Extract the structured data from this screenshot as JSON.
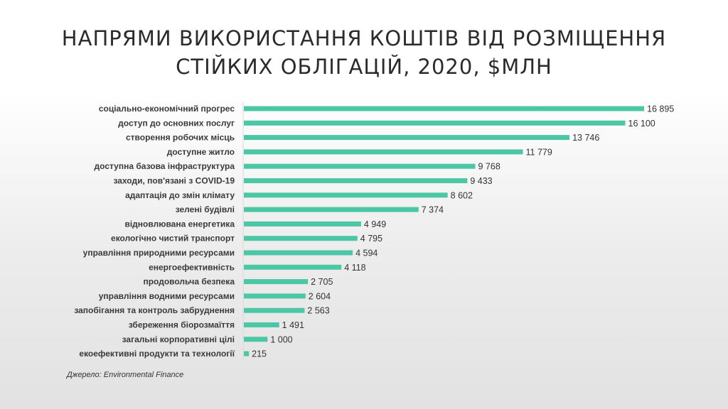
{
  "slide": {
    "title_line1": "Напрями використання коштів від розміщення",
    "title_line2": "стійких облігацій, 2020, $млн",
    "source": "Джерело: Environmental Finance"
  },
  "chart_data": {
    "type": "bar",
    "orientation": "horizontal",
    "categories": [
      "соціально-економічний прогрес",
      "доступ до основних послуг",
      "створення робочих місць",
      "доступне житло",
      "доступна базова інфраструктура",
      "заходи, пов'язані з COVID-19",
      "адаптація до змін клімату",
      "зелені будівлі",
      "відновлювана енергетика",
      "екологічно чистий транспорт",
      "управління природними ресурсами",
      "енергоефективність",
      "продовольча безпека",
      "управління водними ресурсами",
      "запобігання та контроль забруднення",
      "збереження біорозмаїття",
      "загальні корпоративні цілі",
      "екоефективні продукти та технології"
    ],
    "values": [
      16895,
      16100,
      13746,
      11779,
      9768,
      9433,
      8602,
      7374,
      4949,
      4795,
      4594,
      4118,
      2705,
      2604,
      2563,
      1491,
      1000,
      215
    ],
    "value_labels": [
      "16 895",
      "16 100",
      "13 746",
      "11 779",
      "9 768",
      "9 433",
      "8 602",
      "7 374",
      "4 949",
      "4 795",
      "4 594",
      "4 118",
      "2 705",
      "2 604",
      "2 563",
      "1 491",
      "1 000",
      "215"
    ],
    "xlim": [
      0,
      16895
    ],
    "grid": false,
    "legend": "none",
    "bar_color": "#4cc7a6"
  }
}
